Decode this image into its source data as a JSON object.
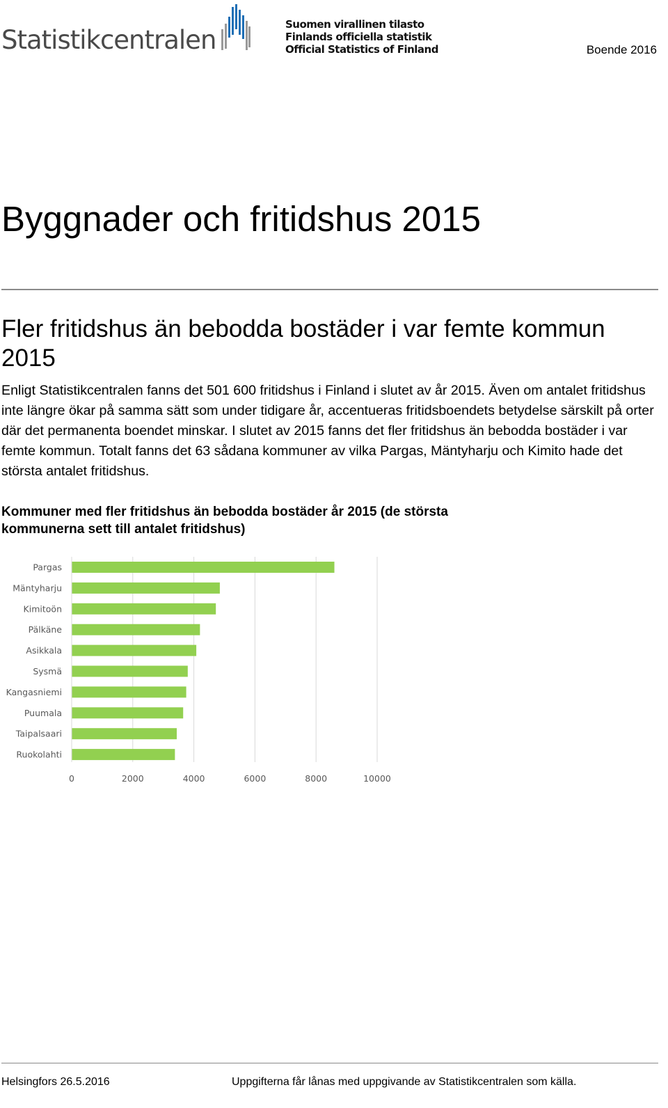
{
  "header": {
    "logo_wordmark": "Statistikcentralen",
    "logo_lines": [
      "Suomen virallinen tilasto",
      "Finlands officiella statistik",
      "Official Statistics of Finland"
    ],
    "publication": "Boende 2016"
  },
  "colors": {
    "bar": "#92d050",
    "logo_blue": "#1f6fb5",
    "logo_grey": "#9a9a9a",
    "rule": "#8a8a8a"
  },
  "page_title": "Byggnader och fritidshus 2015",
  "section": {
    "heading": "Fler fritidshus än bebodda bostäder i var femte kommun 2015",
    "body": "Enligt Statistikcentralen fanns det 501 600 fritidshus i Finland i slutet av år 2015. Även om antalet fritidshus inte längre ökar på samma sätt som under tidigare år, accentueras fritidsboendets betydelse särskilt på orter där det permanenta boendet minskar. I slutet av 2015 fanns det fler fritidshus än bebodda bostäder i var femte kommun. Totalt fanns det 63 sådana kommuner av vilka Pargas, Mäntyharju och Kimito hade det största antalet fritidshus."
  },
  "chart_title": "Kommuner med fler fritidshus än bebodda bostäder år 2015 (de största kommunerna sett till antalet fritidshus)",
  "chart_data": {
    "type": "bar",
    "orientation": "horizontal",
    "categories": [
      "Pargas",
      "Mäntyharju",
      "Kimitoön",
      "Pälkäne",
      "Asikkala",
      "Sysmä",
      "Kangasniemi",
      "Puumala",
      "Taipalsaari",
      "Ruokolahti"
    ],
    "values": [
      8600,
      4850,
      4720,
      4200,
      4080,
      3800,
      3750,
      3650,
      3440,
      3380
    ],
    "xlim": [
      0,
      10000
    ],
    "xticks": [
      "0",
      "2000",
      "4000",
      "6000",
      "8000",
      "10000"
    ],
    "grid": true,
    "legend": "none"
  },
  "footer": {
    "left": "Helsingfors 26.5.2016",
    "right": "Uppgifterna får lånas med uppgivande av Statistikcentralen som källa."
  }
}
